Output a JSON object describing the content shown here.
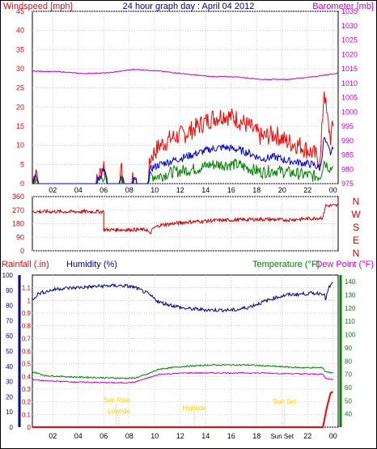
{
  "title": "24 hour graph day : April 04 2012",
  "colors": {
    "wind": "#ff0000",
    "gust_avg": "#0000cc",
    "wind_low": "#008000",
    "baro": "#cc00cc",
    "direction": "#cc0000",
    "humidity": "#00008b",
    "temperature": "#008000",
    "dewpoint": "#cc00cc",
    "rain": "#ff0000",
    "event": "#ffcc00",
    "grid": "#cccccc"
  },
  "chart_data": [
    {
      "type": "line",
      "left_label": "Windspeed [mph]",
      "right_label": "Barometer [mb]",
      "ylim_left": [
        0,
        45
      ],
      "yticks_left": [
        "0",
        "5",
        "10",
        "15",
        "20",
        "25",
        "30",
        "35",
        "40",
        "45"
      ],
      "ylim_right": [
        975,
        1035
      ],
      "yticks_right": [
        "975",
        "980",
        "985",
        "990",
        "995",
        "1000",
        "1005",
        "1010",
        "1015",
        "1020",
        "1025",
        "1030",
        "1035"
      ],
      "xticks": [
        "02",
        "04",
        "06",
        "08",
        "10",
        "12",
        "14",
        "16",
        "18",
        "20",
        "22",
        "00"
      ],
      "series": [
        {
          "key": "gust",
          "points": [
            [
              0,
              0
            ],
            [
              0.3,
              4
            ],
            [
              0.5,
              0
            ],
            [
              1,
              0
            ],
            [
              5,
              0
            ],
            [
              5.6,
              5
            ],
            [
              5.9,
              0
            ],
            [
              6.8,
              0
            ],
            [
              7,
              3
            ],
            [
              7.2,
              0
            ],
            [
              7.8,
              0
            ],
            [
              8,
              2
            ],
            [
              8.2,
              0
            ],
            [
              9,
              0
            ],
            [
              9.3,
              7
            ],
            [
              10,
              10
            ],
            [
              11,
              12
            ],
            [
              12,
              13
            ],
            [
              13,
              15
            ],
            [
              14,
              17
            ],
            [
              15,
              18
            ],
            [
              16,
              17
            ],
            [
              17,
              15
            ],
            [
              18,
              12
            ],
            [
              19,
              13
            ],
            [
              20,
              11
            ],
            [
              21,
              10
            ],
            [
              22,
              8
            ],
            [
              22.6,
              6
            ],
            [
              22.9,
              25
            ],
            [
              23.1,
              18
            ],
            [
              23.4,
              12
            ],
            [
              23.6,
              15
            ]
          ]
        },
        {
          "key": "avg",
          "points": [
            [
              0,
              0
            ],
            [
              0.3,
              2
            ],
            [
              0.5,
              0
            ],
            [
              1,
              0
            ],
            [
              5,
              0
            ],
            [
              5.6,
              4
            ],
            [
              5.9,
              0
            ],
            [
              6.8,
              0
            ],
            [
              7,
              1.5
            ],
            [
              7.2,
              0
            ],
            [
              7.8,
              0
            ],
            [
              8,
              1
            ],
            [
              8.2,
              0
            ],
            [
              9,
              0
            ],
            [
              9.3,
              4
            ],
            [
              10,
              5
            ],
            [
              11,
              6
            ],
            [
              12,
              7
            ],
            [
              13,
              8
            ],
            [
              14,
              9
            ],
            [
              15,
              9.5
            ],
            [
              16,
              9
            ],
            [
              17,
              8
            ],
            [
              18,
              6.5
            ],
            [
              19,
              7
            ],
            [
              20,
              6
            ],
            [
              21,
              5.5
            ],
            [
              22,
              5
            ],
            [
              22.6,
              4
            ],
            [
              22.9,
              12
            ],
            [
              23.1,
              10
            ],
            [
              23.4,
              8
            ],
            [
              23.6,
              9
            ]
          ]
        },
        {
          "key": "low",
          "points": [
            [
              0,
              0
            ],
            [
              0.3,
              1
            ],
            [
              0.5,
              0
            ],
            [
              1,
              0
            ],
            [
              5,
              0
            ],
            [
              5.6,
              2
            ],
            [
              5.9,
              0
            ],
            [
              6.8,
              0
            ],
            [
              7,
              1
            ],
            [
              7.2,
              0
            ],
            [
              7.8,
              0
            ],
            [
              8,
              0.5
            ],
            [
              8.2,
              0
            ],
            [
              9,
              0
            ],
            [
              9.3,
              2
            ],
            [
              10,
              2
            ],
            [
              11,
              3
            ],
            [
              12,
              3.5
            ],
            [
              13,
              4
            ],
            [
              14,
              5
            ],
            [
              15,
              5
            ],
            [
              16,
              5
            ],
            [
              17,
              4
            ],
            [
              18,
              3
            ],
            [
              19,
              3.5
            ],
            [
              20,
              3
            ],
            [
              21,
              2.5
            ],
            [
              22,
              2
            ],
            [
              22.6,
              2
            ],
            [
              22.9,
              6
            ],
            [
              23.1,
              5
            ],
            [
              23.4,
              4
            ],
            [
              23.6,
              4.5
            ]
          ]
        },
        {
          "key": "baro",
          "axis": "right",
          "points": [
            [
              0,
              1014.2
            ],
            [
              2,
              1014.0
            ],
            [
              4,
              1013.3
            ],
            [
              6,
              1013.6
            ],
            [
              8,
              1014.8
            ],
            [
              10,
              1014.2
            ],
            [
              12,
              1013.2
            ],
            [
              14,
              1012.3
            ],
            [
              16,
              1012.2
            ],
            [
              18,
              1011.3
            ],
            [
              20,
              1011.3
            ],
            [
              22,
              1012.2
            ],
            [
              23,
              1012.8
            ],
            [
              24,
              1013.5
            ]
          ]
        }
      ]
    },
    {
      "type": "line",
      "ylim": [
        0,
        360
      ],
      "yticks": [
        "0",
        "90",
        "180",
        "270",
        "360"
      ],
      "compass": [
        "N",
        "W",
        "S",
        "E",
        "N"
      ],
      "series": [
        {
          "key": "direction",
          "points": [
            [
              0,
              260
            ],
            [
              5.6,
              260
            ],
            [
              5.6,
              140
            ],
            [
              9,
              140
            ],
            [
              9.2,
              110
            ],
            [
              9.5,
              150
            ],
            [
              10,
              170
            ],
            [
              12,
              190
            ],
            [
              14,
              200
            ],
            [
              16,
              205
            ],
            [
              18,
              210
            ],
            [
              20,
              205
            ],
            [
              22,
              215
            ],
            [
              22.8,
              220
            ],
            [
              23,
              300
            ],
            [
              24,
              300
            ]
          ]
        }
      ]
    },
    {
      "type": "line",
      "left_label": "Rainfall (.in)",
      "humidity_label": "Humidity (%)",
      "temp_label": "Temperature (°F)",
      "dew_label": "Dew Point (°F)",
      "ylim_left": [
        0,
        1.2
      ],
      "yticks_left": [
        "0",
        "0.1",
        "0.2",
        "0.3",
        "0.4",
        "0.5",
        "0.6",
        "0.7",
        "0.8",
        "0.9",
        "1",
        "1.1"
      ],
      "ylim_hum": [
        0,
        100
      ],
      "yticks_hum": [
        "0",
        "10",
        "20",
        "30",
        "40",
        "50",
        "60",
        "70",
        "80",
        "90",
        "100"
      ],
      "ylim_right": [
        30,
        145
      ],
      "yticks_right": [
        "40",
        "50",
        "60",
        "70",
        "80",
        "90",
        "100",
        "110",
        "120",
        "130",
        "140"
      ],
      "xticks": [
        "02",
        "04",
        "06",
        "08",
        "10",
        "12",
        "14",
        "16",
        "18",
        "Sun Set",
        "22",
        "00"
      ],
      "events": [
        {
          "label": "Sun Rise",
          "x": 6.6
        },
        {
          "label": "Lowtide",
          "x": 6.8
        },
        {
          "label": "Hightide",
          "x": 12.7
        },
        {
          "label": "Sun Set",
          "x": 19.8
        }
      ],
      "series": [
        {
          "key": "humidity",
          "axis": "hum",
          "points": [
            [
              0,
              84
            ],
            [
              0.5,
              88
            ],
            [
              2,
              91
            ],
            [
              4,
              92
            ],
            [
              6,
              93
            ],
            [
              7.2,
              93
            ],
            [
              8,
              92
            ],
            [
              9,
              88
            ],
            [
              10,
              82
            ],
            [
              11,
              80
            ],
            [
              12,
              78
            ],
            [
              14,
              77
            ],
            [
              16,
              77
            ],
            [
              17,
              79
            ],
            [
              18,
              82
            ],
            [
              19,
              85
            ],
            [
              20,
              87
            ],
            [
              22,
              88
            ],
            [
              22.9,
              88
            ],
            [
              23,
              84
            ],
            [
              23.3,
              92
            ],
            [
              23.6,
              95
            ]
          ]
        },
        {
          "key": "temperature",
          "axis": "right",
          "points": [
            [
              0,
              72
            ],
            [
              1,
              69
            ],
            [
              3,
              68
            ],
            [
              5,
              67.5
            ],
            [
              7,
              67
            ],
            [
              8,
              67
            ],
            [
              9,
              70
            ],
            [
              10,
              74
            ],
            [
              12,
              76
            ],
            [
              14,
              77
            ],
            [
              16,
              77
            ],
            [
              17,
              77
            ],
            [
              19,
              76
            ],
            [
              21,
              75
            ],
            [
              22.8,
              75
            ],
            [
              23,
              72
            ],
            [
              23.6,
              71
            ]
          ]
        },
        {
          "key": "dewpoint",
          "axis": "right",
          "points": [
            [
              0,
              66
            ],
            [
              1,
              65
            ],
            [
              4,
              64
            ],
            [
              7,
              63.5
            ],
            [
              8,
              64
            ],
            [
              9,
              67
            ],
            [
              10,
              70
            ],
            [
              12,
              71
            ],
            [
              14,
              71
            ],
            [
              16,
              71
            ],
            [
              18,
              71
            ],
            [
              20,
              70.5
            ],
            [
              22.8,
              70
            ],
            [
              23,
              67
            ],
            [
              23.6,
              66
            ]
          ]
        },
        {
          "key": "rain",
          "axis": "left",
          "points": [
            [
              0,
              0
            ],
            [
              22.8,
              0
            ],
            [
              23.1,
              0.15
            ],
            [
              23.4,
              0.27
            ],
            [
              23.6,
              0.28
            ]
          ]
        }
      ]
    }
  ]
}
